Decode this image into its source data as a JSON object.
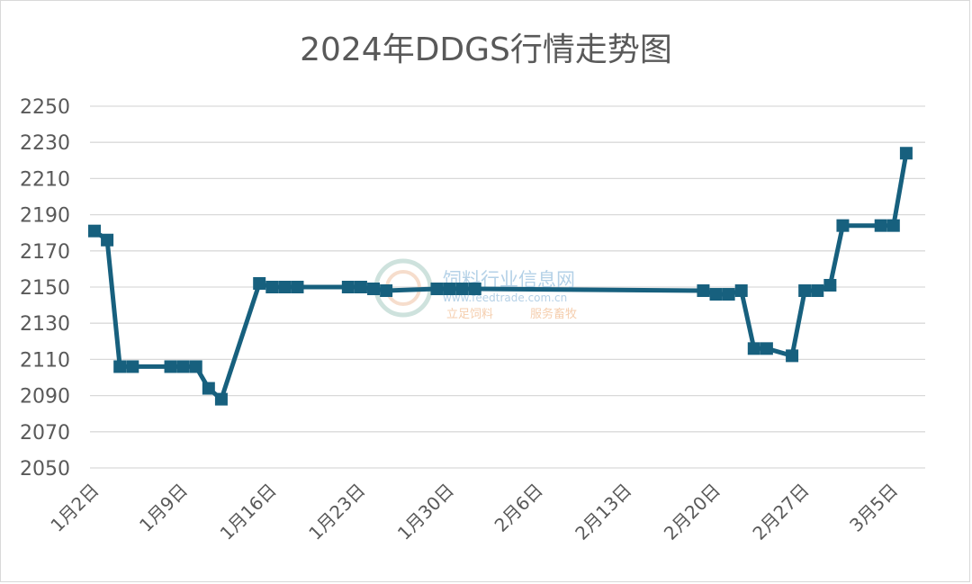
{
  "chart_data": {
    "type": "line",
    "title": "2024年DDGS行情走势图",
    "xlabel": "",
    "ylabel": "",
    "ylim": [
      2050,
      2250
    ],
    "yticks": [
      2050,
      2070,
      2090,
      2110,
      2130,
      2150,
      2170,
      2190,
      2210,
      2230,
      2250
    ],
    "xrange": [
      "2024-01-02",
      "2024-03-07"
    ],
    "xticks": [
      {
        "date": "2024-01-02",
        "label": "1月2日"
      },
      {
        "date": "2024-01-09",
        "label": "1月9日"
      },
      {
        "date": "2024-01-16",
        "label": "1月16日"
      },
      {
        "date": "2024-01-23",
        "label": "1月23日"
      },
      {
        "date": "2024-01-30",
        "label": "1月30日"
      },
      {
        "date": "2024-02-06",
        "label": "2月6日"
      },
      {
        "date": "2024-02-13",
        "label": "2月13日"
      },
      {
        "date": "2024-02-20",
        "label": "2月20日"
      },
      {
        "date": "2024-02-27",
        "label": "2月27日"
      },
      {
        "date": "2024-03-05",
        "label": "3月5日"
      }
    ],
    "grid": true,
    "legend": "none",
    "color": "#17607E",
    "series": [
      {
        "points": [
          [
            "2024-01-02",
            2181
          ],
          [
            "2024-01-03",
            2176
          ],
          [
            "2024-01-04",
            2106
          ],
          [
            "2024-01-05",
            2106
          ],
          [
            "2024-01-08",
            2106
          ],
          [
            "2024-01-09",
            2106
          ],
          [
            "2024-01-10",
            2106
          ],
          [
            "2024-01-11",
            2094
          ],
          [
            "2024-01-12",
            2088
          ],
          [
            "2024-01-15",
            2152
          ],
          [
            "2024-01-16",
            2150
          ],
          [
            "2024-01-17",
            2150
          ],
          [
            "2024-01-18",
            2150
          ],
          [
            "2024-01-22",
            2150
          ],
          [
            "2024-01-23",
            2150
          ],
          [
            "2024-01-24",
            2149
          ],
          [
            "2024-01-25",
            2148
          ],
          [
            "2024-01-29",
            2149
          ],
          [
            "2024-01-30",
            2149
          ],
          [
            "2024-01-31",
            2149
          ],
          [
            "2024-02-01",
            2149
          ],
          [
            "2024-02-19",
            2148
          ],
          [
            "2024-02-20",
            2146
          ],
          [
            "2024-02-21",
            2146
          ],
          [
            "2024-02-22",
            2148
          ],
          [
            "2024-02-23",
            2116
          ],
          [
            "2024-02-24",
            2116
          ],
          [
            "2024-02-26",
            2112
          ],
          [
            "2024-02-27",
            2148
          ],
          [
            "2024-02-28",
            2148
          ],
          [
            "2024-02-29",
            2151
          ],
          [
            "2024-03-01",
            2184
          ],
          [
            "2024-03-04",
            2184
          ],
          [
            "2024-03-05",
            2184
          ],
          [
            "2024-03-06",
            2224
          ]
        ]
      }
    ]
  },
  "watermark": {
    "name": "饲料行业信息网",
    "url": "www.feedtrade.com.cn",
    "slogan_left": "立足饲料",
    "slogan_right": "服务畜牧"
  }
}
